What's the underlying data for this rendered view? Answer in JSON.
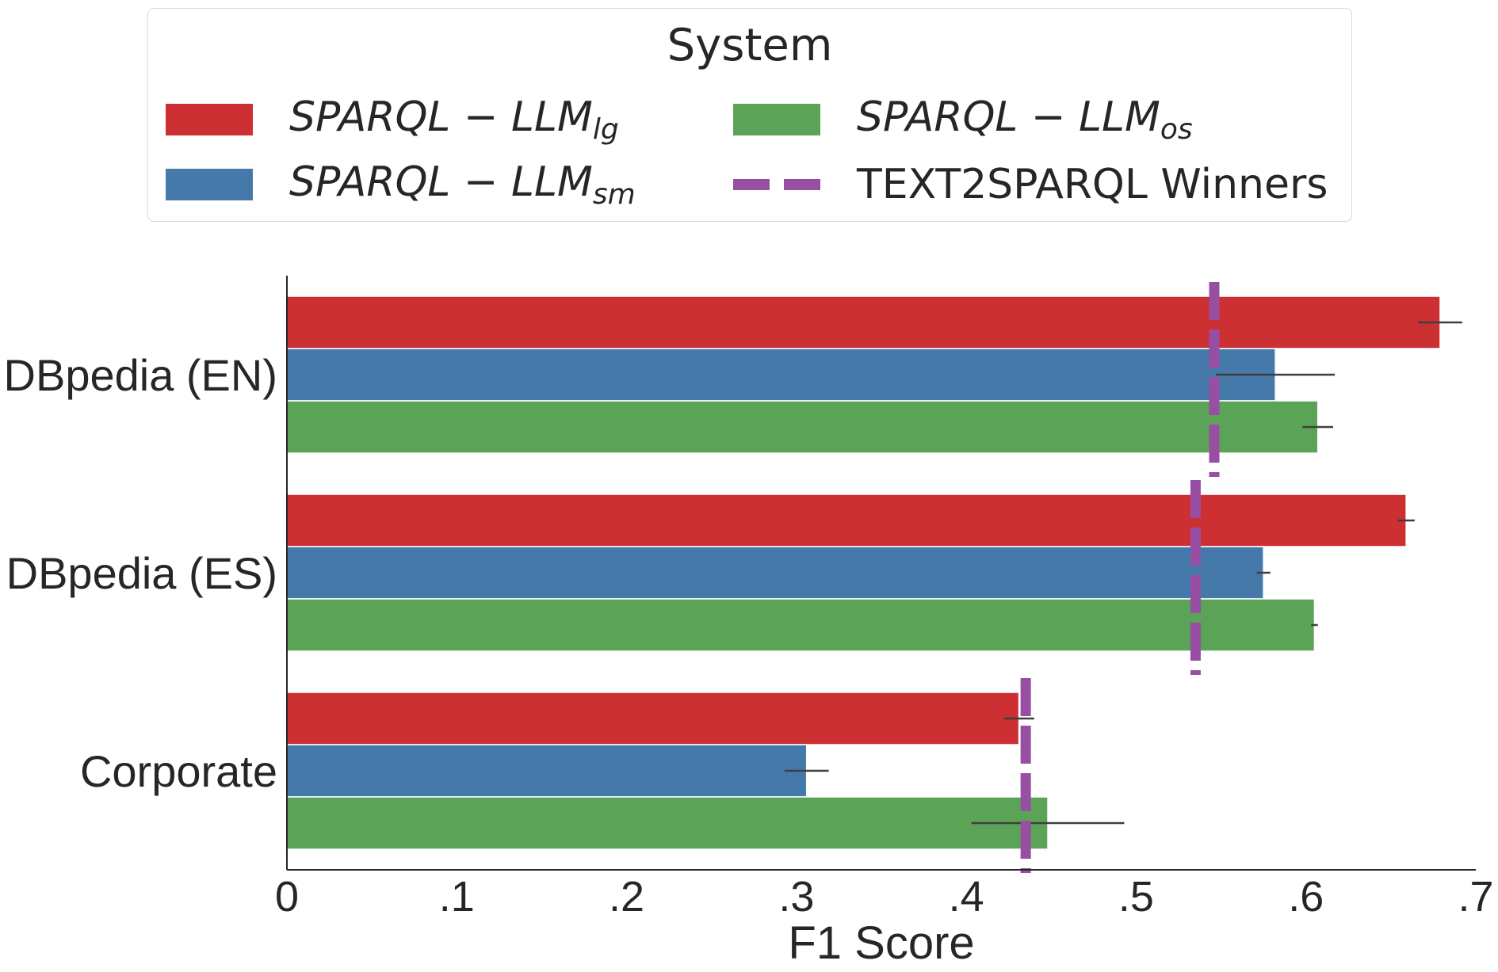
{
  "chart_data": {
    "type": "bar",
    "orientation": "horizontal",
    "title": "",
    "xlabel": "F1 Score",
    "ylabel": "",
    "xlim": [
      0,
      0.7
    ],
    "x_ticks": [
      0,
      0.1,
      0.2,
      0.3,
      0.4,
      0.5,
      0.6,
      0.7
    ],
    "x_tick_labels": [
      "0",
      ".1",
      ".2",
      ".3",
      ".4",
      ".5",
      ".6",
      ".7"
    ],
    "categories": [
      "DBpedia (EN)",
      "DBpedia (ES)",
      "Corporate"
    ],
    "series": [
      {
        "name": "SPARQL − LLM",
        "name_sub": "lg",
        "color": "#cd3033",
        "values": [
          0.679,
          0.659,
          0.431
        ],
        "errors": [
          0.013,
          0.005,
          0.009
        ]
      },
      {
        "name": "SPARQL − LLM",
        "name_sub": "sm",
        "color": "#4579aa",
        "values": [
          0.582,
          0.575,
          0.306
        ],
        "errors": [
          0.035,
          0.004,
          0.013
        ]
      },
      {
        "name": "SPARQL − LLM",
        "name_sub": "os",
        "color": "#5ba357",
        "values": [
          0.607,
          0.605,
          0.448
        ],
        "errors": [
          0.009,
          0.002,
          0.045
        ]
      }
    ],
    "reference_lines": {
      "name": "TEXT2SPARQL Winners",
      "color": "#984ea3",
      "style": "dashed",
      "values": [
        0.546,
        0.535,
        0.435
      ]
    },
    "legend": {
      "title": "System",
      "placement": "top-center",
      "entries": [
        {
          "label": "SPARQL − LLM",
          "sub": "lg",
          "color": "#cd3033"
        },
        {
          "label": "SPARQL − LLM",
          "sub": "os",
          "color": "#5ba357"
        },
        {
          "label": "SPARQL − LLM",
          "sub": "sm",
          "color": "#4579aa"
        },
        {
          "label": "TEXT2SPARQL Winners",
          "color": "#984ea3"
        }
      ]
    },
    "grid": false
  }
}
